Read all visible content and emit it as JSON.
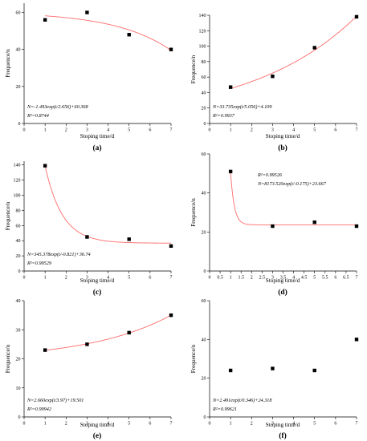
{
  "colors": {
    "fit": "#ff6a6a",
    "marker": "#000000",
    "axis": "#000000"
  },
  "chart_data": [
    {
      "type": "scatter",
      "panel_label": "(a)",
      "x": [
        1,
        3,
        5,
        7
      ],
      "y": [
        56,
        60,
        48,
        40
      ],
      "xlabel": "Stoping time/d",
      "ylabel": "Frequence/n",
      "xlim": [
        0,
        7
      ],
      "ylim": [
        0,
        65
      ],
      "xticks": [
        0,
        1,
        2,
        3,
        4,
        5,
        6,
        7
      ],
      "yticks": [
        0,
        20,
        40,
        60
      ],
      "fit": {
        "a": -1.493,
        "t": 2.656,
        "c": 60.368
      },
      "equation": "N=-1.493exp(t/2.656)+60.368",
      "r2": "R²=0.8744",
      "equation_position": "bottom-left"
    },
    {
      "type": "scatter",
      "panel_label": "(b)",
      "x": [
        1,
        3,
        5,
        7
      ],
      "y": [
        47,
        61,
        98,
        138
      ],
      "xlabel": "Stoping time/d",
      "ylabel": "Frequence/n",
      "xlim": [
        0,
        7
      ],
      "ylim": [
        0,
        140
      ],
      "xticks": [
        0,
        1,
        2,
        3,
        4,
        5,
        6,
        7
      ],
      "yticks": [
        0,
        20,
        40,
        60,
        80,
        100,
        120,
        140
      ],
      "fit": {
        "a": 33.735,
        "t": 5.056,
        "c": 4.109
      },
      "equation": "N=33.735exp(t/5.056)+4.109",
      "r2": "R²=0.9937",
      "equation_position": "bottom-left"
    },
    {
      "type": "scatter",
      "panel_label": "(c)",
      "x": [
        1,
        3,
        5,
        7
      ],
      "y": [
        139,
        45,
        42,
        33
      ],
      "xlabel": "Stoping time/d",
      "ylabel": "Frequence/n",
      "xlim": [
        0,
        7
      ],
      "ylim": [
        0,
        145
      ],
      "xticks": [
        0,
        1,
        2,
        3,
        4,
        5,
        6,
        7
      ],
      "yticks": [
        0,
        20,
        40,
        60,
        80,
        100,
        120,
        140
      ],
      "fit": {
        "a": 345.378,
        "t": -0.821,
        "c": 36.74
      },
      "equation": "N=345.378exp(t/-0.821)+36.74",
      "r2": "R²=0.99529",
      "equation_position": "bottom-left"
    },
    {
      "type": "scatter",
      "panel_label": "(d)",
      "x": [
        1,
        3,
        5,
        7
      ],
      "y": [
        51,
        23,
        25,
        23
      ],
      "xlabel": "Stoping time/d",
      "ylabel": "Frequence/n",
      "xlim": [
        0,
        7
      ],
      "ylim": [
        0,
        60
      ],
      "xticks": [
        0,
        0.5,
        1,
        1.5,
        2,
        2.5,
        3,
        3.5,
        4,
        4.5,
        5,
        5.5,
        6,
        6.5,
        7
      ],
      "yticks": [
        0,
        20,
        40,
        60
      ],
      "fit": {
        "a": 8173.52,
        "t": -0.175,
        "c": 23.667
      },
      "equation": "N=8173.520exp(t/-0.175)+23.667",
      "r2": "R²=0.99526",
      "equation_position": "top-center"
    },
    {
      "type": "scatter",
      "panel_label": "(e)",
      "x": [
        1,
        3,
        5,
        7
      ],
      "y": [
        23,
        25,
        29,
        35
      ],
      "xlabel": "Stoping time/d",
      "ylabel": "Frequence/n",
      "xlim": [
        0,
        7
      ],
      "ylim": [
        0,
        40
      ],
      "xticks": [
        0,
        1,
        2,
        3,
        4,
        5,
        6,
        7
      ],
      "yticks": [
        0,
        10,
        20,
        30,
        40
      ],
      "fit": {
        "a": 2.66,
        "t": 3.97,
        "c": 19.501
      },
      "equation": "N=2.660exp(t/3.97)+19.501",
      "r2": "R²=0.99942",
      "equation_position": "bottom-left"
    },
    {
      "type": "scatter",
      "panel_label": "(f)",
      "x": [
        1,
        3,
        5,
        7
      ],
      "y": [
        24,
        25,
        24,
        40
      ],
      "xlabel": "Stoping time/d",
      "ylabel": "Frequence/n",
      "xlim": [
        0,
        7
      ],
      "ylim": [
        0,
        60
      ],
      "xticks": [
        0,
        1,
        2,
        3,
        4,
        5,
        6,
        7
      ],
      "yticks": [
        0,
        20,
        40,
        60
      ],
      "fit": {
        "a": 2.491,
        "t": 0.346,
        "c": 24.318
      },
      "equation": "N=2.491exp(t/0.346)+24.318",
      "r2": "R²=0.99621",
      "equation_position": "bottom-left"
    }
  ]
}
